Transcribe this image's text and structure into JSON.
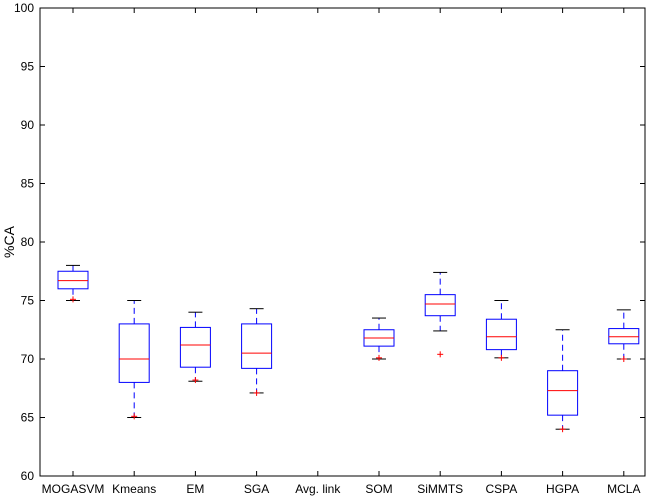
{
  "chart_data": {
    "type": "box",
    "ylabel": "%CA",
    "xlabel": "",
    "title": "",
    "ylim": [
      60,
      100
    ],
    "yticks": [
      60,
      65,
      70,
      75,
      80,
      85,
      90,
      95,
      100
    ],
    "grid": false,
    "categories": [
      "MOGASVM",
      "Kmeans",
      "EM",
      "SGA",
      "Avg. link",
      "SOM",
      "SiMMTS",
      "CSPA",
      "HGPA",
      "MCLA"
    ],
    "boxes": [
      {
        "label": "MOGASVM",
        "whisker_low": 75.0,
        "q1": 76.0,
        "median": 76.7,
        "q3": 77.5,
        "whisker_high": 78.0,
        "outliers": [
          75.1
        ]
      },
      {
        "label": "Kmeans",
        "whisker_low": 65.0,
        "q1": 68.0,
        "median": 70.0,
        "q3": 73.0,
        "whisker_high": 75.0,
        "outliers": [
          65.1
        ]
      },
      {
        "label": "EM",
        "whisker_low": 68.1,
        "q1": 69.3,
        "median": 71.2,
        "q3": 72.7,
        "whisker_high": 74.0,
        "outliers": [
          68.2
        ]
      },
      {
        "label": "SGA",
        "whisker_low": 67.1,
        "q1": 69.2,
        "median": 70.5,
        "q3": 73.0,
        "whisker_high": 74.3,
        "outliers": [
          67.1
        ]
      },
      {
        "label": "Avg. link",
        "whisker_low": null,
        "q1": null,
        "median": null,
        "q3": null,
        "whisker_high": null,
        "outliers": []
      },
      {
        "label": "SOM",
        "whisker_low": 70.0,
        "q1": 71.1,
        "median": 71.8,
        "q3": 72.5,
        "whisker_high": 73.5,
        "outliers": [
          70.1
        ]
      },
      {
        "label": "SiMMTS",
        "whisker_low": 72.4,
        "q1": 73.7,
        "median": 74.7,
        "q3": 75.5,
        "whisker_high": 77.4,
        "outliers": [
          70.4
        ]
      },
      {
        "label": "CSPA",
        "whisker_low": 70.1,
        "q1": 70.8,
        "median": 71.9,
        "q3": 73.4,
        "whisker_high": 75.0,
        "outliers": [
          70.1
        ]
      },
      {
        "label": "HGPA",
        "whisker_low": 64.0,
        "q1": 65.2,
        "median": 67.3,
        "q3": 69.0,
        "whisker_high": 72.5,
        "outliers": [
          64.0
        ]
      },
      {
        "label": "MCLA",
        "whisker_low": 70.0,
        "q1": 71.3,
        "median": 71.9,
        "q3": 72.6,
        "whisker_high": 74.2,
        "outliers": [
          70.0
        ]
      }
    ],
    "colors": {
      "box": "#0000ff",
      "median": "#ff0000",
      "outlier": "#ff0000",
      "axis": "#000000"
    }
  }
}
